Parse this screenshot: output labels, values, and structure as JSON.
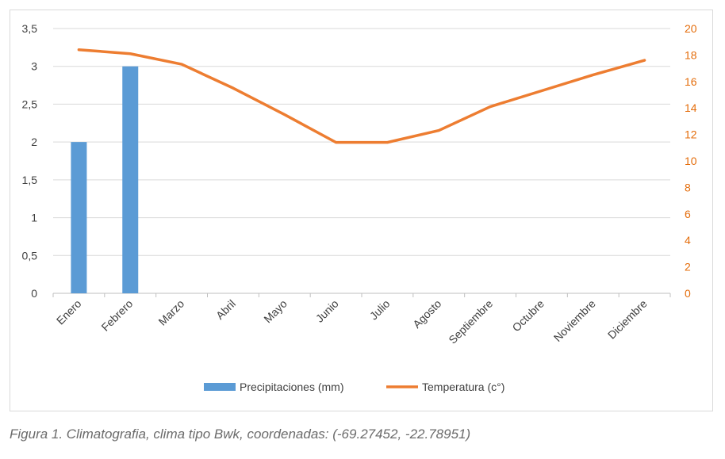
{
  "chart_data": {
    "type": "bar",
    "categories": [
      "Enero",
      "Febrero",
      "Marzo",
      "Abril",
      "Mayo",
      "Junio",
      "Julio",
      "Agosto",
      "Septiembre",
      "Octubre",
      "Noviembre",
      "Diciembre"
    ],
    "series": [
      {
        "name": "Precipitaciones (mm)",
        "type": "bar",
        "axis": "left",
        "color": "#5b9bd5",
        "values": [
          2,
          3,
          0,
          0,
          0,
          0,
          0,
          0,
          0,
          0,
          0,
          0
        ]
      },
      {
        "name": "Temperatura (c°)",
        "type": "line",
        "axis": "right",
        "color": "#ed7d31",
        "values": [
          18.4,
          18.1,
          17.3,
          15.5,
          13.5,
          11.4,
          11.4,
          12.3,
          14.1,
          15.3,
          16.5,
          17.6
        ]
      }
    ],
    "y_left": {
      "min": 0,
      "max": 3.5,
      "ticks": [
        "0",
        "0,5",
        "1",
        "1,5",
        "2",
        "2,5",
        "3",
        "3,5"
      ]
    },
    "y_right": {
      "min": 0,
      "max": 20,
      "ticks": [
        "0",
        "2",
        "4",
        "6",
        "8",
        "10",
        "12",
        "14",
        "16",
        "18",
        "20"
      ]
    },
    "grid": true,
    "legend": "bottom",
    "title": "",
    "xlabel": "",
    "ylabel": ""
  },
  "caption": "Figura 1. Climatografia, clima tipo Bwk, coordenadas: (-69.27452, -22.78951)"
}
